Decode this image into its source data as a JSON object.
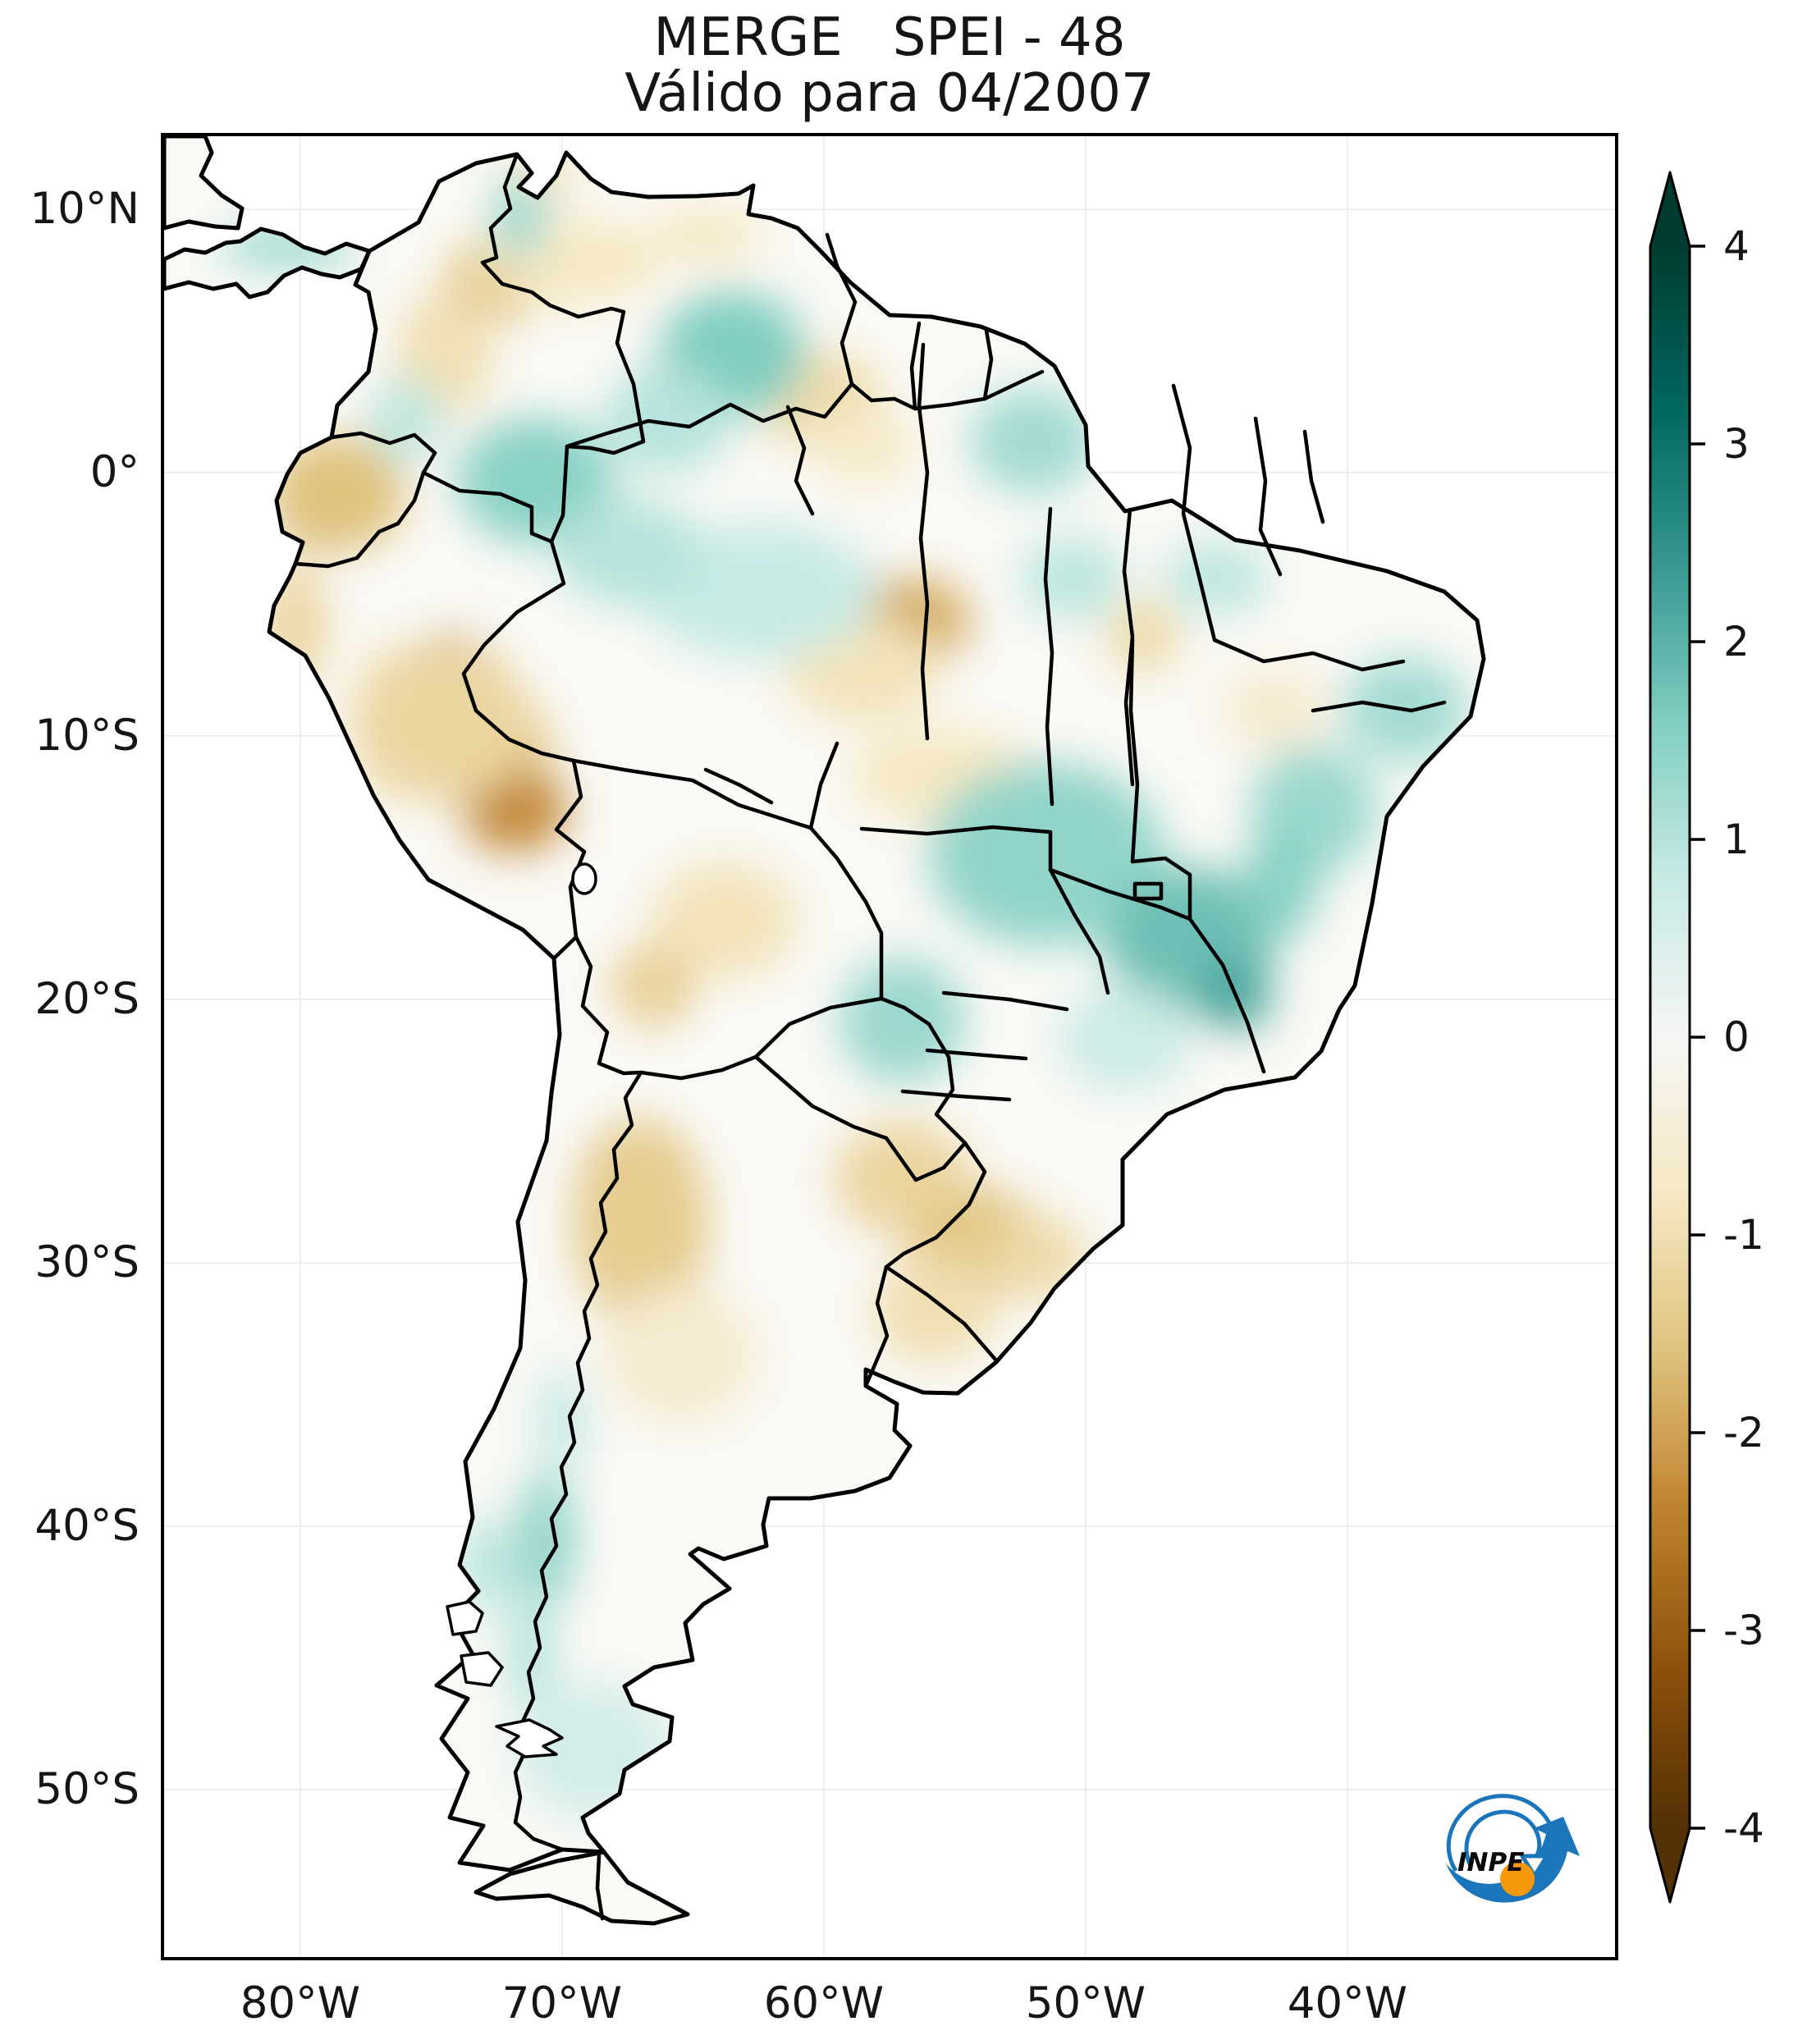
{
  "title": {
    "line1": "MERGE   SPEI - 48",
    "line2": "Válido para 04/2007"
  },
  "axes": {
    "lat_ticks": [
      {
        "label": "10°N",
        "value": 10
      },
      {
        "label": "0°",
        "value": 0
      },
      {
        "label": "10°S",
        "value": -10
      },
      {
        "label": "20°S",
        "value": -20
      },
      {
        "label": "30°S",
        "value": -30
      },
      {
        "label": "40°S",
        "value": -40
      },
      {
        "label": "50°S",
        "value": -50
      }
    ],
    "lon_ticks": [
      {
        "label": "80°W",
        "value": -80
      },
      {
        "label": "70°W",
        "value": -70
      },
      {
        "label": "60°W",
        "value": -60
      },
      {
        "label": "50°W",
        "value": -50
      },
      {
        "label": "40°W",
        "value": -40
      }
    ]
  },
  "colorbar": {
    "tick_labels": [
      "4",
      "3",
      "2",
      "1",
      "0",
      "-1",
      "-2",
      "-3",
      "-4"
    ],
    "tick_values": [
      4,
      3,
      2,
      1,
      0,
      -1,
      -2,
      -3,
      -4
    ],
    "vmin": -4,
    "vmax": 4,
    "colormap": "BrBG",
    "stops": [
      {
        "t": 0.0,
        "c": "#543005"
      },
      {
        "t": 0.1,
        "c": "#8c510a"
      },
      {
        "t": 0.2,
        "c": "#bf812d"
      },
      {
        "t": 0.3,
        "c": "#dfc27d"
      },
      {
        "t": 0.4,
        "c": "#f6e8c3"
      },
      {
        "t": 0.5,
        "c": "#f5f5f5"
      },
      {
        "t": 0.6,
        "c": "#c7eae5"
      },
      {
        "t": 0.7,
        "c": "#80cdc1"
      },
      {
        "t": 0.8,
        "c": "#35978f"
      },
      {
        "t": 0.9,
        "c": "#01665e"
      },
      {
        "t": 1.0,
        "c": "#003c30"
      }
    ]
  },
  "logo": {
    "text": "INPE",
    "blue": "#1b75bb",
    "orange": "#f5980a"
  },
  "map_data": {
    "variable": "SPEI-48",
    "valid_for": "04/2007",
    "extent": {
      "lon_min": -85.2,
      "lon_max": -29.8,
      "lat_min": -56.4,
      "lat_max": 12.77
    },
    "anomalies": [
      {
        "lon": -79.2,
        "lat": -1.6,
        "value": -2.7,
        "rx": 1.6,
        "ry": 1.4
      },
      {
        "lon": -78.6,
        "lat": -0.8,
        "value": -1.6,
        "rx": 2.6,
        "ry": 2.2
      },
      {
        "lon": -80.2,
        "lat": -5.8,
        "value": -1.2,
        "rx": 1.2,
        "ry": 2.4
      },
      {
        "lon": -76.5,
        "lat": -9.5,
        "value": -0.8,
        "rx": 1.6,
        "ry": 3.0
      },
      {
        "lon": -72.5,
        "lat": 7.3,
        "value": -1.4,
        "rx": 2.0,
        "ry": 1.6
      },
      {
        "lon": -74.5,
        "lat": 4.5,
        "value": -1.0,
        "rx": 1.8,
        "ry": 2.4
      },
      {
        "lon": -69.5,
        "lat": 8.0,
        "value": -0.8,
        "rx": 3.2,
        "ry": 1.6
      },
      {
        "lon": -70.8,
        "lat": 11.2,
        "value": -0.9,
        "rx": 1.4,
        "ry": 0.9
      },
      {
        "lon": -64.5,
        "lat": 9.0,
        "value": -0.7,
        "rx": 2.2,
        "ry": 1.2
      },
      {
        "lon": -74.3,
        "lat": -7.8,
        "value": -2.8,
        "rx": 1.9,
        "ry": 1.6
      },
      {
        "lon": -73.0,
        "lat": -10.5,
        "value": -1.6,
        "rx": 2.6,
        "ry": 2.2
      },
      {
        "lon": -71.8,
        "lat": -12.8,
        "value": -2.3,
        "rx": 2.0,
        "ry": 1.6
      },
      {
        "lon": -74.5,
        "lat": -9.5,
        "value": -1.2,
        "rx": 3.4,
        "ry": 3.0
      },
      {
        "lon": -56.6,
        "lat": -5.6,
        "value": -1.9,
        "rx": 2.2,
        "ry": 1.6
      },
      {
        "lon": -58.5,
        "lat": -7.5,
        "value": -0.9,
        "rx": 3.0,
        "ry": 2.0
      },
      {
        "lon": -60.2,
        "lat": 2.8,
        "value": -1.1,
        "rx": 2.4,
        "ry": 1.8
      },
      {
        "lon": -58.5,
        "lat": 1.0,
        "value": -0.7,
        "rx": 2.0,
        "ry": 1.5
      },
      {
        "lon": -55.5,
        "lat": -11.5,
        "value": -0.8,
        "rx": 3.5,
        "ry": 1.8
      },
      {
        "lon": -47.8,
        "lat": -6.2,
        "value": -1.1,
        "rx": 1.4,
        "ry": 1.4
      },
      {
        "lon": -42.8,
        "lat": -9.0,
        "value": -0.6,
        "rx": 2.0,
        "ry": 1.6
      },
      {
        "lon": -63.8,
        "lat": -17.0,
        "value": -0.9,
        "rx": 2.8,
        "ry": 2.2
      },
      {
        "lon": -66.5,
        "lat": -19.5,
        "value": -1.3,
        "rx": 1.6,
        "ry": 1.6
      },
      {
        "lon": -68.2,
        "lat": -28.0,
        "value": -2.6,
        "rx": 1.3,
        "ry": 2.8
      },
      {
        "lon": -67.0,
        "lat": -28.5,
        "value": -1.4,
        "rx": 2.6,
        "ry": 4.0
      },
      {
        "lon": -65.5,
        "lat": -33.5,
        "value": -0.6,
        "rx": 3.0,
        "ry": 2.6
      },
      {
        "lon": -57.0,
        "lat": -26.8,
        "value": -1.2,
        "rx": 2.6,
        "ry": 2.2
      },
      {
        "lon": -54.2,
        "lat": -29.3,
        "value": -1.5,
        "rx": 2.6,
        "ry": 2.2
      },
      {
        "lon": -55.8,
        "lat": -31.8,
        "value": -1.0,
        "rx": 2.4,
        "ry": 2.0
      },
      {
        "lon": -51.8,
        "lat": -29.8,
        "value": -1.1,
        "rx": 1.8,
        "ry": 1.6
      },
      {
        "lon": -80.5,
        "lat": 8.6,
        "value": 1.2,
        "rx": 2.6,
        "ry": 0.9
      },
      {
        "lon": -71.0,
        "lat": -0.3,
        "value": 1.5,
        "rx": 3.0,
        "ry": 2.4
      },
      {
        "lon": -76.0,
        "lat": 2.0,
        "value": 0.9,
        "rx": 1.4,
        "ry": 1.6
      },
      {
        "lon": -71.6,
        "lat": 9.7,
        "value": 1.3,
        "rx": 1.0,
        "ry": 1.6
      },
      {
        "lon": -63.5,
        "lat": 4.5,
        "value": 1.6,
        "rx": 2.8,
        "ry": 2.4
      },
      {
        "lon": -66.0,
        "lat": 2.0,
        "value": 1.0,
        "rx": 2.4,
        "ry": 2.0
      },
      {
        "lon": -52.0,
        "lat": 1.2,
        "value": 1.2,
        "rx": 2.4,
        "ry": 2.0
      },
      {
        "lon": -62.5,
        "lat": -4.5,
        "value": 0.8,
        "rx": 4.5,
        "ry": 2.6
      },
      {
        "lon": -67.5,
        "lat": -3.0,
        "value": 1.0,
        "rx": 2.8,
        "ry": 2.0
      },
      {
        "lon": -50.5,
        "lat": -4.0,
        "value": 0.9,
        "rx": 2.0,
        "ry": 1.6
      },
      {
        "lon": -45.0,
        "lat": -4.0,
        "value": 0.9,
        "rx": 2.0,
        "ry": 1.4
      },
      {
        "lon": -37.8,
        "lat": -9.0,
        "value": 1.2,
        "rx": 2.4,
        "ry": 2.0
      },
      {
        "lon": -41.3,
        "lat": -12.8,
        "value": 1.3,
        "rx": 2.4,
        "ry": 2.4
      },
      {
        "lon": -51.5,
        "lat": -14.5,
        "value": 1.4,
        "rx": 4.5,
        "ry": 3.5
      },
      {
        "lon": -46.0,
        "lat": -17.8,
        "value": 1.8,
        "rx": 3.2,
        "ry": 2.8
      },
      {
        "lon": -44.3,
        "lat": -19.8,
        "value": 2.2,
        "rx": 1.4,
        "ry": 1.4
      },
      {
        "lon": -42.5,
        "lat": -15.5,
        "value": 1.5,
        "rx": 1.4,
        "ry": 2.2
      },
      {
        "lon": -57.0,
        "lat": -20.8,
        "value": 1.3,
        "rx": 2.4,
        "ry": 2.4
      },
      {
        "lon": -48.5,
        "lat": -21.5,
        "value": 0.7,
        "rx": 2.6,
        "ry": 2.0
      },
      {
        "lon": -70.6,
        "lat": -40.5,
        "value": 1.4,
        "rx": 1.1,
        "ry": 2.6
      },
      {
        "lon": -71.2,
        "lat": -44.8,
        "value": 1.0,
        "rx": 0.9,
        "ry": 2.2
      },
      {
        "lon": -70.0,
        "lat": -36.0,
        "value": 0.8,
        "rx": 1.0,
        "ry": 2.0
      },
      {
        "lon": -68.8,
        "lat": -48.5,
        "value": 0.6,
        "rx": 3.0,
        "ry": 2.6
      },
      {
        "lon": -72.8,
        "lat": -41.5,
        "value": 0.9,
        "rx": 1.2,
        "ry": 1.8
      }
    ]
  }
}
